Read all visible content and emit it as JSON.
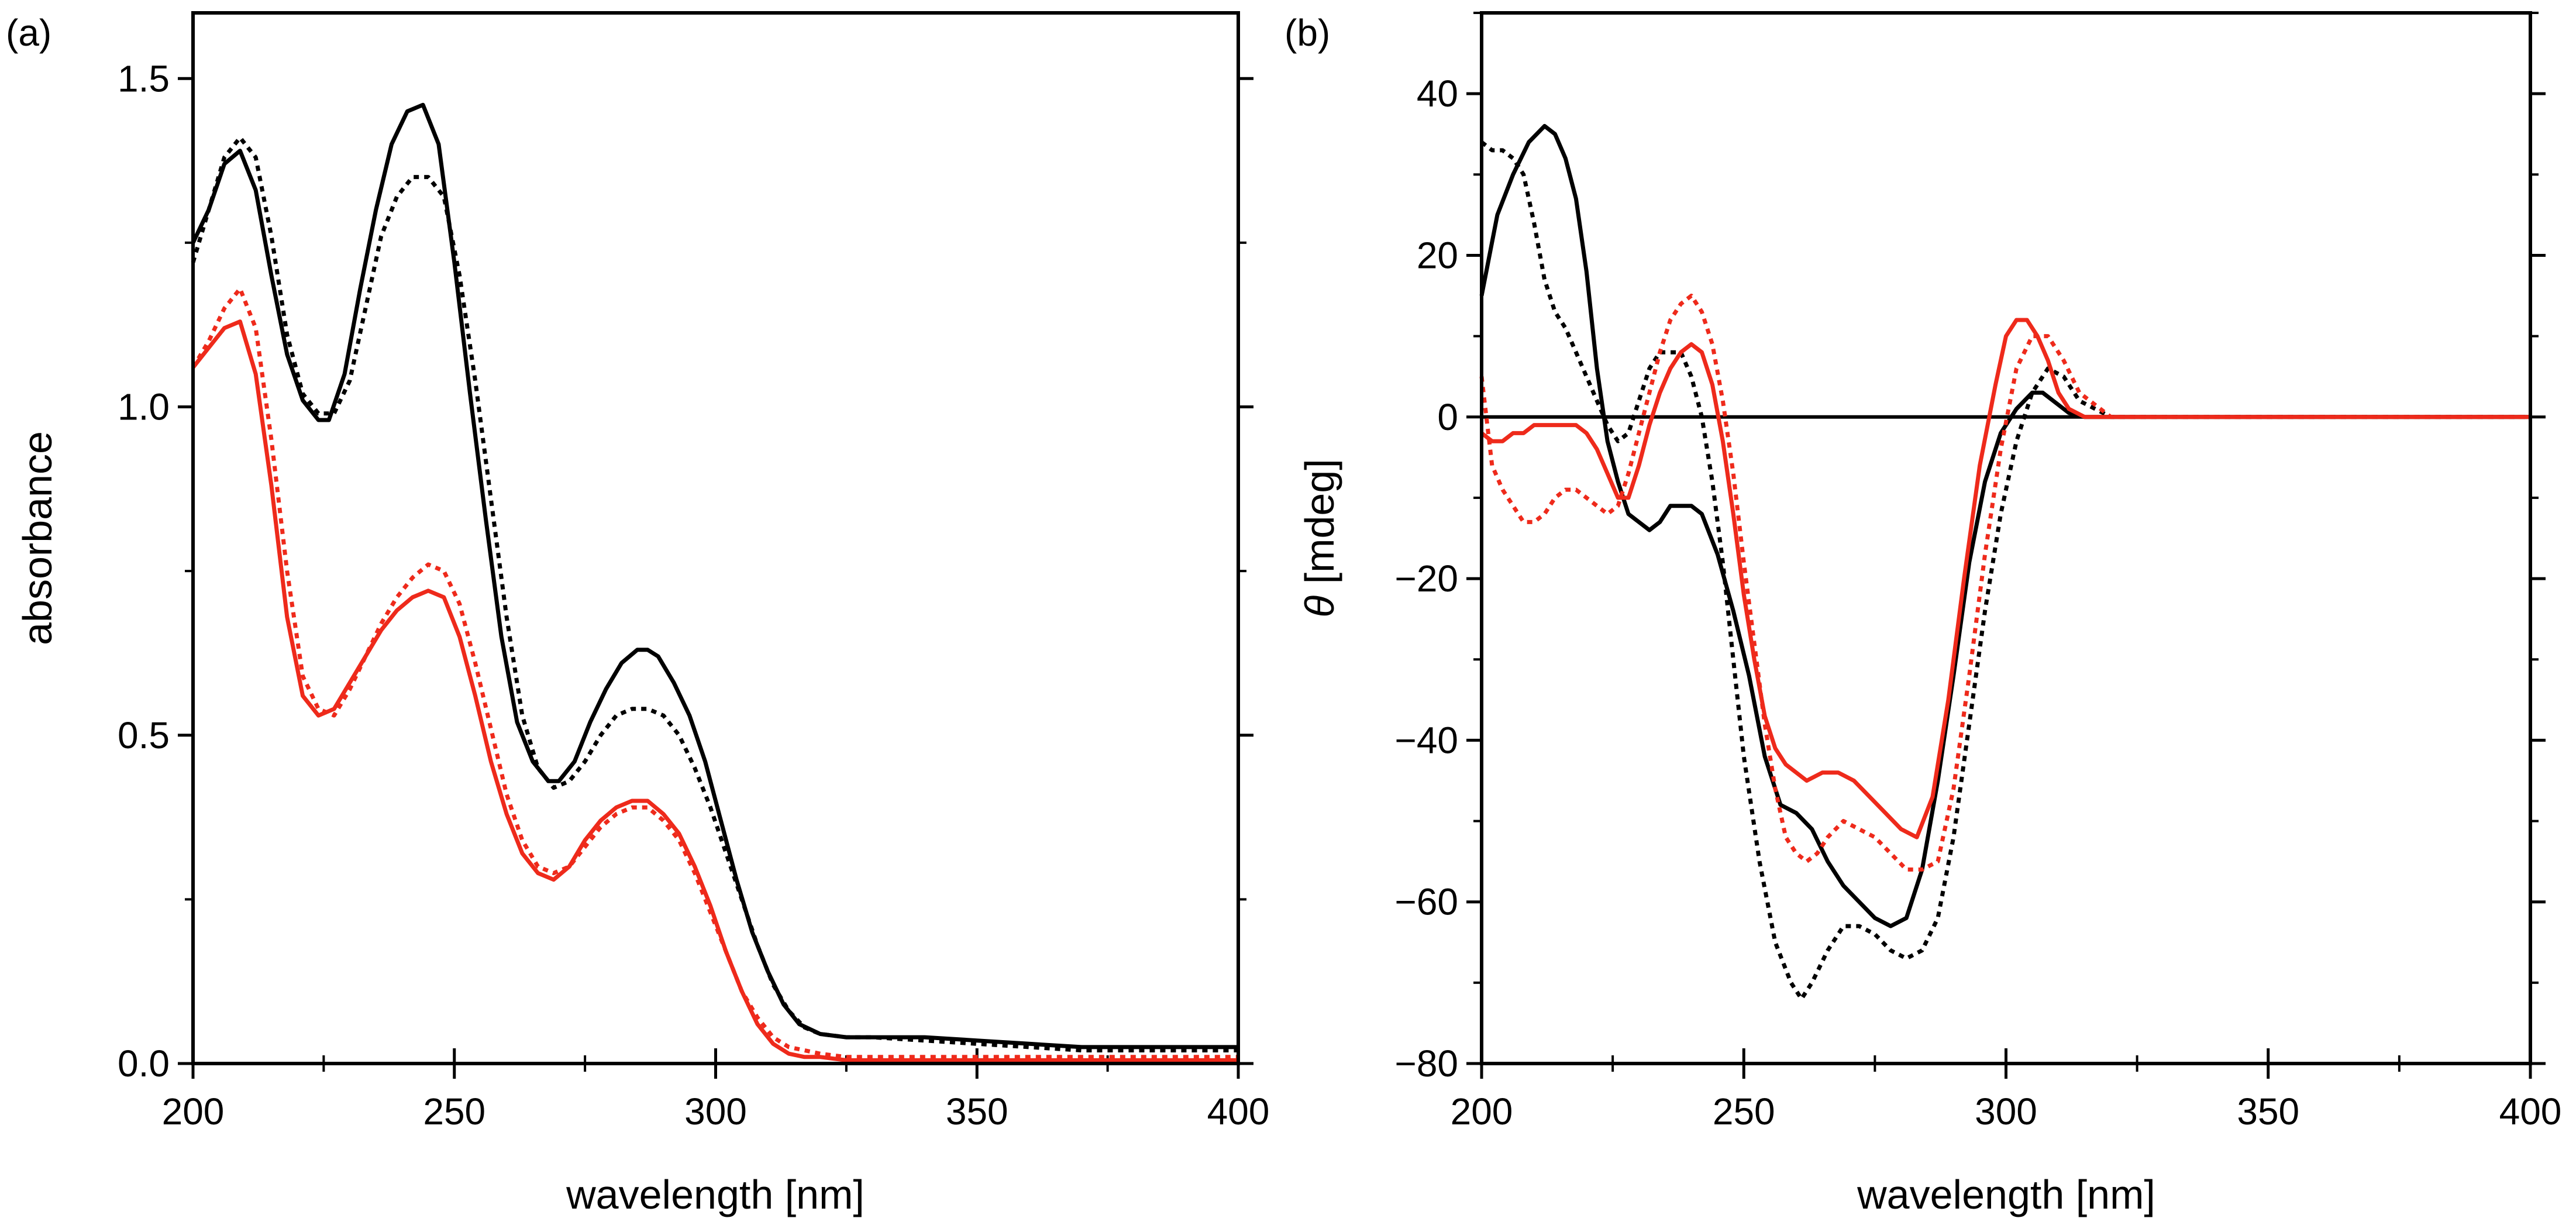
{
  "chart_data": [
    {
      "type": "line",
      "panel_label": "(a)",
      "xlabel": "wavelength [nm]",
      "ylabel": "absorbance",
      "xlim": [
        200,
        400
      ],
      "ylim": [
        0,
        1.6
      ],
      "xticks": [
        200,
        250,
        300,
        350,
        400
      ],
      "xtick_labels": [
        "200",
        "250",
        "300",
        "350",
        "400"
      ],
      "yticks": [
        0,
        0.5,
        1.0,
        1.5
      ],
      "ytick_labels": [
        "0.0",
        "0.5",
        "1.0",
        "1.5"
      ],
      "grid": false,
      "series": [
        {
          "name": "black solid",
          "color": "#000000",
          "dash": "solid",
          "x": [
            200,
            203,
            206,
            209,
            212,
            215,
            218,
            221,
            224,
            226,
            229,
            232,
            235,
            238,
            241,
            244,
            247,
            250,
            253,
            256,
            259,
            262,
            265,
            268,
            270,
            273,
            276,
            279,
            282,
            285,
            287,
            289,
            292,
            295,
            298,
            301,
            304,
            307,
            310,
            313,
            316,
            320,
            325,
            330,
            340,
            350,
            360,
            370,
            380,
            390,
            400
          ],
          "y": [
            1.25,
            1.3,
            1.37,
            1.39,
            1.33,
            1.2,
            1.08,
            1.01,
            0.98,
            0.98,
            1.05,
            1.18,
            1.3,
            1.4,
            1.45,
            1.46,
            1.4,
            1.22,
            1.02,
            0.83,
            0.65,
            0.52,
            0.46,
            0.43,
            0.43,
            0.46,
            0.52,
            0.57,
            0.61,
            0.63,
            0.63,
            0.62,
            0.58,
            0.53,
            0.46,
            0.37,
            0.28,
            0.2,
            0.14,
            0.09,
            0.06,
            0.045,
            0.04,
            0.04,
            0.04,
            0.035,
            0.03,
            0.025,
            0.025,
            0.025,
            0.025
          ]
        },
        {
          "name": "black dotted",
          "color": "#000000",
          "dash": "dotted",
          "x": [
            200,
            203,
            206,
            209,
            212,
            215,
            218,
            221,
            224,
            227,
            230,
            233,
            236,
            239,
            242,
            245,
            248,
            251,
            254,
            257,
            260,
            263,
            266,
            269,
            272,
            275,
            278,
            281,
            284,
            287,
            290,
            293,
            296,
            299,
            302,
            305,
            308,
            311,
            314,
            317,
            320,
            325,
            330,
            340,
            350,
            360,
            370,
            380,
            390,
            400
          ],
          "y": [
            1.22,
            1.3,
            1.38,
            1.41,
            1.38,
            1.26,
            1.11,
            1.02,
            0.99,
            0.99,
            1.04,
            1.15,
            1.26,
            1.32,
            1.35,
            1.35,
            1.32,
            1.2,
            1.04,
            0.86,
            0.68,
            0.53,
            0.45,
            0.42,
            0.43,
            0.46,
            0.5,
            0.53,
            0.54,
            0.54,
            0.53,
            0.5,
            0.45,
            0.39,
            0.32,
            0.25,
            0.18,
            0.12,
            0.08,
            0.055,
            0.045,
            0.04,
            0.04,
            0.035,
            0.03,
            0.025,
            0.02,
            0.02,
            0.02,
            0.02
          ]
        },
        {
          "name": "red solid",
          "color": "#ee2a1b",
          "dash": "solid",
          "x": [
            200,
            203,
            206,
            209,
            212,
            215,
            218,
            221,
            224,
            227,
            230,
            233,
            236,
            239,
            242,
            245,
            248,
            251,
            254,
            257,
            260,
            263,
            266,
            269,
            272,
            275,
            278,
            281,
            284,
            287,
            290,
            293,
            296,
            299,
            302,
            305,
            308,
            311,
            314,
            317,
            320,
            325,
            330,
            340,
            350,
            400
          ],
          "y": [
            1.06,
            1.09,
            1.12,
            1.13,
            1.05,
            0.88,
            0.68,
            0.56,
            0.53,
            0.54,
            0.58,
            0.62,
            0.66,
            0.69,
            0.71,
            0.72,
            0.71,
            0.65,
            0.56,
            0.46,
            0.38,
            0.32,
            0.29,
            0.28,
            0.3,
            0.34,
            0.37,
            0.39,
            0.4,
            0.4,
            0.38,
            0.35,
            0.3,
            0.24,
            0.17,
            0.11,
            0.06,
            0.03,
            0.015,
            0.01,
            0.01,
            0.005,
            0.005,
            0.005,
            0.005,
            0.005
          ]
        },
        {
          "name": "red dotted",
          "color": "#ee2a1b",
          "dash": "dotted",
          "x": [
            200,
            203,
            206,
            209,
            212,
            215,
            218,
            221,
            224,
            227,
            230,
            233,
            236,
            239,
            242,
            245,
            248,
            251,
            254,
            257,
            260,
            263,
            266,
            269,
            272,
            275,
            278,
            281,
            284,
            287,
            290,
            293,
            296,
            299,
            302,
            305,
            308,
            311,
            314,
            317,
            320,
            325,
            330,
            340,
            350,
            400
          ],
          "y": [
            1.06,
            1.1,
            1.15,
            1.18,
            1.12,
            0.95,
            0.75,
            0.59,
            0.54,
            0.53,
            0.57,
            0.62,
            0.67,
            0.71,
            0.74,
            0.76,
            0.75,
            0.7,
            0.61,
            0.51,
            0.41,
            0.34,
            0.3,
            0.29,
            0.3,
            0.33,
            0.36,
            0.38,
            0.39,
            0.39,
            0.37,
            0.34,
            0.29,
            0.23,
            0.17,
            0.11,
            0.07,
            0.04,
            0.025,
            0.02,
            0.015,
            0.01,
            0.01,
            0.01,
            0.01,
            0.01
          ]
        }
      ]
    },
    {
      "type": "line",
      "panel_label": "(b)",
      "xlabel": "wavelength [nm]",
      "ylabel_symbol": "θ",
      "ylabel": " [mdeg]",
      "xlim": [
        200,
        400
      ],
      "ylim": [
        -80,
        50
      ],
      "xticks": [
        200,
        250,
        300,
        350,
        400
      ],
      "xtick_labels": [
        "200",
        "250",
        "300",
        "350",
        "400"
      ],
      "yticks": [
        -80,
        -60,
        -40,
        -20,
        0,
        20,
        40
      ],
      "ytick_labels": [
        "−80",
        "−60",
        "−40",
        "−20",
        "0",
        "20",
        "40"
      ],
      "zero_line": true,
      "grid": false,
      "series": [
        {
          "name": "black solid",
          "color": "#000000",
          "dash": "solid",
          "x": [
            200,
            203,
            206,
            209,
            212,
            214,
            216,
            218,
            220,
            222,
            224,
            226,
            228,
            230,
            232,
            234,
            236,
            238,
            240,
            242,
            245,
            248,
            251,
            254,
            257,
            260,
            263,
            266,
            269,
            272,
            275,
            278,
            281,
            284,
            287,
            290,
            293,
            296,
            299,
            302,
            305,
            307,
            309,
            312,
            315,
            320,
            330,
            340,
            350,
            360,
            370,
            380,
            390,
            400
          ],
          "y": [
            15,
            25,
            30,
            34,
            36,
            35,
            32,
            27,
            18,
            6,
            -3,
            -8,
            -12,
            -13,
            -14,
            -13,
            -11,
            -11,
            -11,
            -12,
            -17,
            -24,
            -32,
            -42,
            -48,
            -49,
            -51,
            -55,
            -58,
            -60,
            -62,
            -63,
            -62,
            -56,
            -45,
            -32,
            -18,
            -8,
            -2,
            1,
            3,
            3,
            2,
            0.5,
            0,
            0,
            0,
            0,
            0,
            0,
            0,
            0,
            0,
            0
          ]
        },
        {
          "name": "black dotted",
          "color": "#000000",
          "dash": "dotted",
          "x": [
            200,
            202,
            204,
            206,
            208,
            210,
            212,
            214,
            216,
            218,
            220,
            222,
            224,
            226,
            228,
            230,
            232,
            234,
            236,
            238,
            240,
            242,
            244,
            246,
            248,
            250,
            253,
            256,
            259,
            261,
            263,
            266,
            269,
            272,
            275,
            278,
            281,
            284,
            287,
            290,
            293,
            296,
            299,
            302,
            305,
            308,
            311,
            314,
            320,
            330,
            340,
            350,
            400
          ],
          "y": [
            34,
            33,
            33,
            32,
            30,
            24,
            17,
            13,
            11,
            8,
            5,
            2,
            -1,
            -3,
            -2,
            2,
            6,
            8,
            8,
            8,
            5,
            0,
            -8,
            -18,
            -30,
            -42,
            -55,
            -65,
            -70,
            -72,
            -70,
            -66,
            -63,
            -63,
            -64,
            -66,
            -67,
            -66,
            -62,
            -52,
            -38,
            -24,
            -12,
            -3,
            3,
            6,
            5,
            2,
            0,
            0,
            0,
            0,
            0
          ]
        },
        {
          "name": "red solid",
          "color": "#ee2a1b",
          "dash": "solid",
          "x": [
            200,
            202,
            204,
            206,
            208,
            210,
            212,
            214,
            216,
            218,
            220,
            222,
            224,
            226,
            228,
            230,
            232,
            234,
            236,
            238,
            240,
            242,
            244,
            246,
            248,
            250,
            252,
            254,
            256,
            258,
            260,
            262,
            265,
            268,
            271,
            274,
            277,
            280,
            283,
            286,
            289,
            292,
            295,
            298,
            300,
            302,
            304,
            306,
            308,
            310,
            312,
            315,
            320,
            330,
            340,
            350,
            400
          ],
          "y": [
            -2,
            -3,
            -3,
            -2,
            -2,
            -1,
            -1,
            -1,
            -1,
            -1,
            -2,
            -4,
            -7,
            -10,
            -10,
            -6,
            -1,
            3,
            6,
            8,
            9,
            8,
            4,
            -3,
            -12,
            -22,
            -30,
            -37,
            -41,
            -43,
            -44,
            -45,
            -44,
            -44,
            -45,
            -47,
            -49,
            -51,
            -52,
            -47,
            -35,
            -20,
            -6,
            4,
            10,
            12,
            12,
            10,
            7,
            3,
            1,
            0,
            0,
            0,
            0,
            0,
            0
          ]
        },
        {
          "name": "red dotted",
          "color": "#ee2a1b",
          "dash": "dotted",
          "x": [
            200,
            202,
            204,
            206,
            208,
            210,
            212,
            214,
            216,
            218,
            220,
            222,
            224,
            226,
            228,
            230,
            232,
            234,
            236,
            238,
            240,
            242,
            244,
            246,
            248,
            250,
            252,
            254,
            256,
            258,
            260,
            262,
            264,
            266,
            269,
            272,
            275,
            278,
            281,
            284,
            287,
            290,
            293,
            296,
            299,
            302,
            305,
            308,
            311,
            314,
            320,
            330,
            340,
            350,
            400
          ],
          "y": [
            5,
            -6,
            -9,
            -11,
            -13,
            -13,
            -12,
            -10,
            -9,
            -9,
            -10,
            -11,
            -12,
            -11,
            -7,
            -2,
            3,
            8,
            12,
            14,
            15,
            13,
            9,
            2,
            -7,
            -18,
            -28,
            -38,
            -46,
            -52,
            -54,
            -55,
            -54,
            -52,
            -50,
            -51,
            -52,
            -54,
            -56,
            -56,
            -55,
            -46,
            -32,
            -17,
            -4,
            6,
            10,
            10,
            7,
            3,
            0,
            0,
            0,
            0,
            0
          ]
        }
      ]
    }
  ]
}
